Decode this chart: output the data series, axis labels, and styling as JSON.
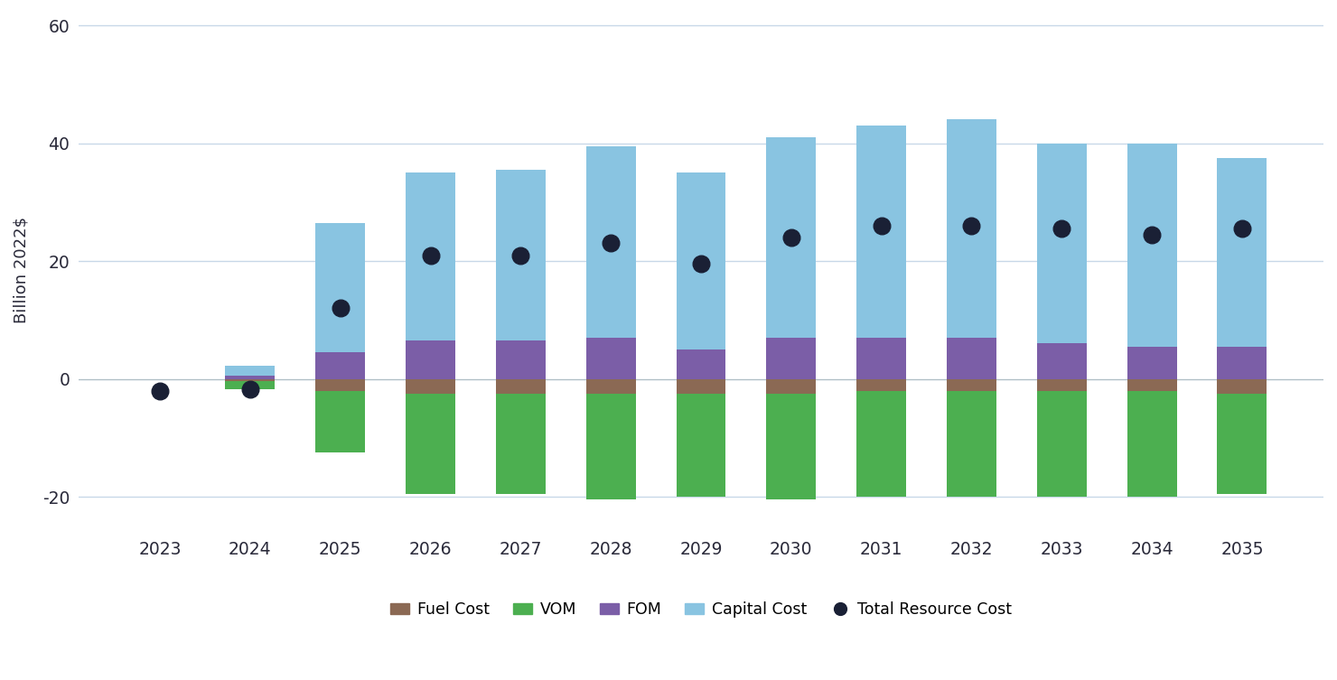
{
  "years": [
    2023,
    2024,
    2025,
    2026,
    2027,
    2028,
    2029,
    2030,
    2031,
    2032,
    2033,
    2034,
    2035
  ],
  "fuel_cost": [
    0,
    -0.3,
    -2.0,
    -2.5,
    -2.5,
    -2.5,
    -2.5,
    -2.5,
    -2.0,
    -2.0,
    -2.0,
    -2.0,
    -2.5
  ],
  "vom": [
    0,
    -1.5,
    -10.5,
    -17.0,
    -17.0,
    -18.0,
    -17.5,
    -18.0,
    -18.0,
    -18.0,
    -18.0,
    -18.0,
    -17.0
  ],
  "fom": [
    0,
    0.5,
    4.5,
    6.5,
    6.5,
    7.0,
    5.0,
    7.0,
    7.0,
    7.0,
    6.0,
    5.5,
    5.5
  ],
  "capital_cost": [
    0,
    1.8,
    22.0,
    28.5,
    29.0,
    32.5,
    30.0,
    34.0,
    36.0,
    37.0,
    34.0,
    34.5,
    32.0
  ],
  "total_resource_cost": [
    -2.0,
    -1.8,
    12.0,
    21.0,
    21.0,
    23.0,
    19.5,
    24.0,
    26.0,
    26.0,
    25.5,
    24.5,
    25.5
  ],
  "bar_width": 0.55,
  "colors": {
    "fuel_cost": "#8B6954",
    "vom": "#4CAF50",
    "fom": "#7B5EA7",
    "capital_cost": "#89C4E1",
    "total_resource_cost": "#1a2035"
  },
  "ylim": [
    -25,
    62
  ],
  "yticks": [
    -20,
    0,
    20,
    40,
    60
  ],
  "ylabel": "Billion 2022$",
  "bg_color": "#ffffff",
  "grid_color": "#c8d8e8",
  "legend_labels": [
    "Fuel Cost",
    "VOM",
    "FOM",
    "Capital Cost",
    "Total Resource Cost"
  ]
}
